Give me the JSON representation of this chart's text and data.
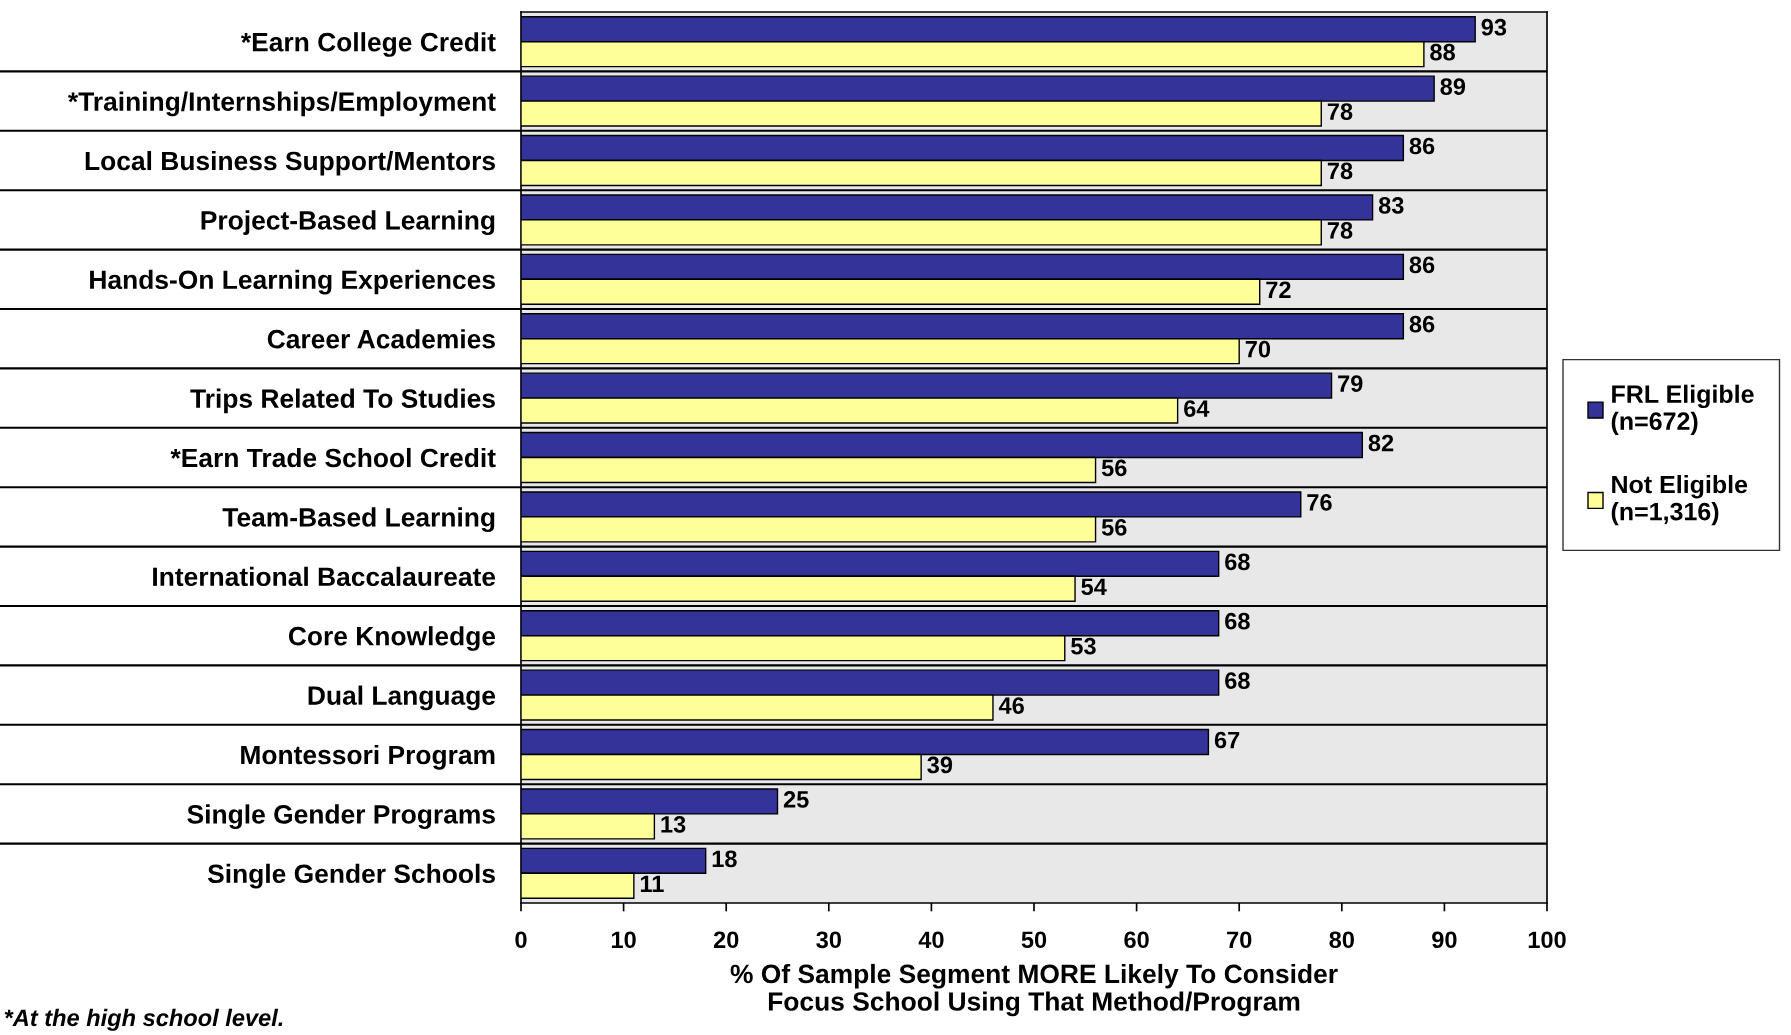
{
  "chart_data": {
    "type": "bar",
    "orientation": "horizontal",
    "categories": [
      "*Earn College Credit",
      "*Training/Internships/Employment",
      "Local Business Support/Mentors",
      "Project-Based Learning",
      "Hands-On Learning Experiences",
      "Career Academies",
      "Trips Related To Studies",
      "*Earn Trade School Credit",
      "Team-Based Learning",
      "International Baccalaureate",
      "Core Knowledge",
      "Dual Language",
      "Montessori Program",
      "Single Gender Programs",
      "Single Gender Schools"
    ],
    "series": [
      {
        "name": "FRL Eligible\n(n=672)",
        "color": "#333399",
        "values": [
          93,
          89,
          86,
          83,
          86,
          86,
          79,
          82,
          76,
          68,
          68,
          68,
          67,
          25,
          18
        ]
      },
      {
        "name": "Not Eligible\n(n=1,316)",
        "color": "#ffff99",
        "values": [
          88,
          78,
          78,
          78,
          72,
          70,
          64,
          56,
          56,
          54,
          53,
          46,
          39,
          13,
          11
        ]
      }
    ],
    "xlim": [
      0,
      100
    ],
    "xticks": [
      0,
      10,
      20,
      30,
      40,
      50,
      60,
      70,
      80,
      90,
      100
    ],
    "xlabel": "% Of Sample Segment MORE Likely To Consider\nFocus School Using That Method/Program",
    "annotations": [
      "*At the high school level."
    ],
    "data_labels": true,
    "grid": "y",
    "legend": "right"
  }
}
